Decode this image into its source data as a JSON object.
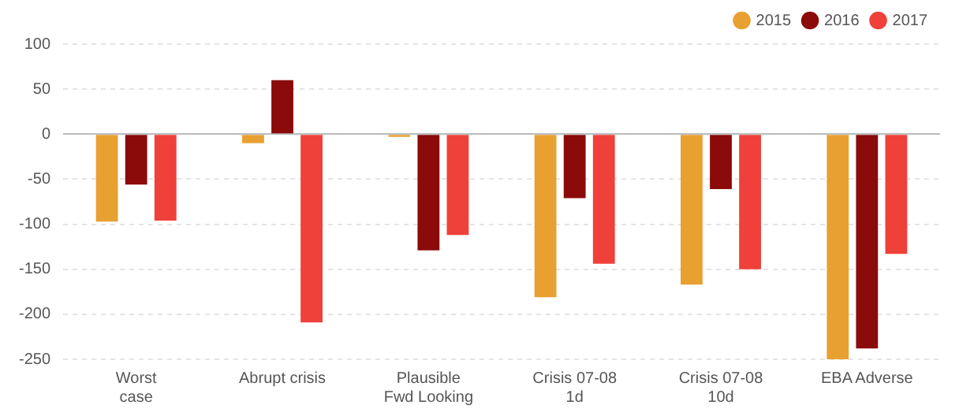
{
  "chart_data": {
    "type": "bar",
    "categories": [
      "Worst\ncase",
      "Abrupt crisis",
      "Plausible\nFwd Looking",
      "Crisis 07-08\n1d",
      "Crisis 07-08\n10d",
      "EBA Adverse"
    ],
    "series": [
      {
        "name": "2015",
        "color": "#e8a030",
        "values": [
          -97,
          -10,
          -3,
          -181,
          -167,
          -250
        ]
      },
      {
        "name": "2016",
        "color": "#8b0a0a",
        "values": [
          -56,
          60,
          -129,
          -71,
          -61,
          -238
        ]
      },
      {
        "name": "2017",
        "color": "#f0403a",
        "values": [
          -96,
          -209,
          -112,
          -144,
          -150,
          -133
        ]
      }
    ],
    "ylim": [
      -250,
      100
    ],
    "yticks": [
      -250,
      -200,
      -150,
      -100,
      -50,
      0,
      50,
      100
    ],
    "grid": "y",
    "legend": "top right"
  }
}
